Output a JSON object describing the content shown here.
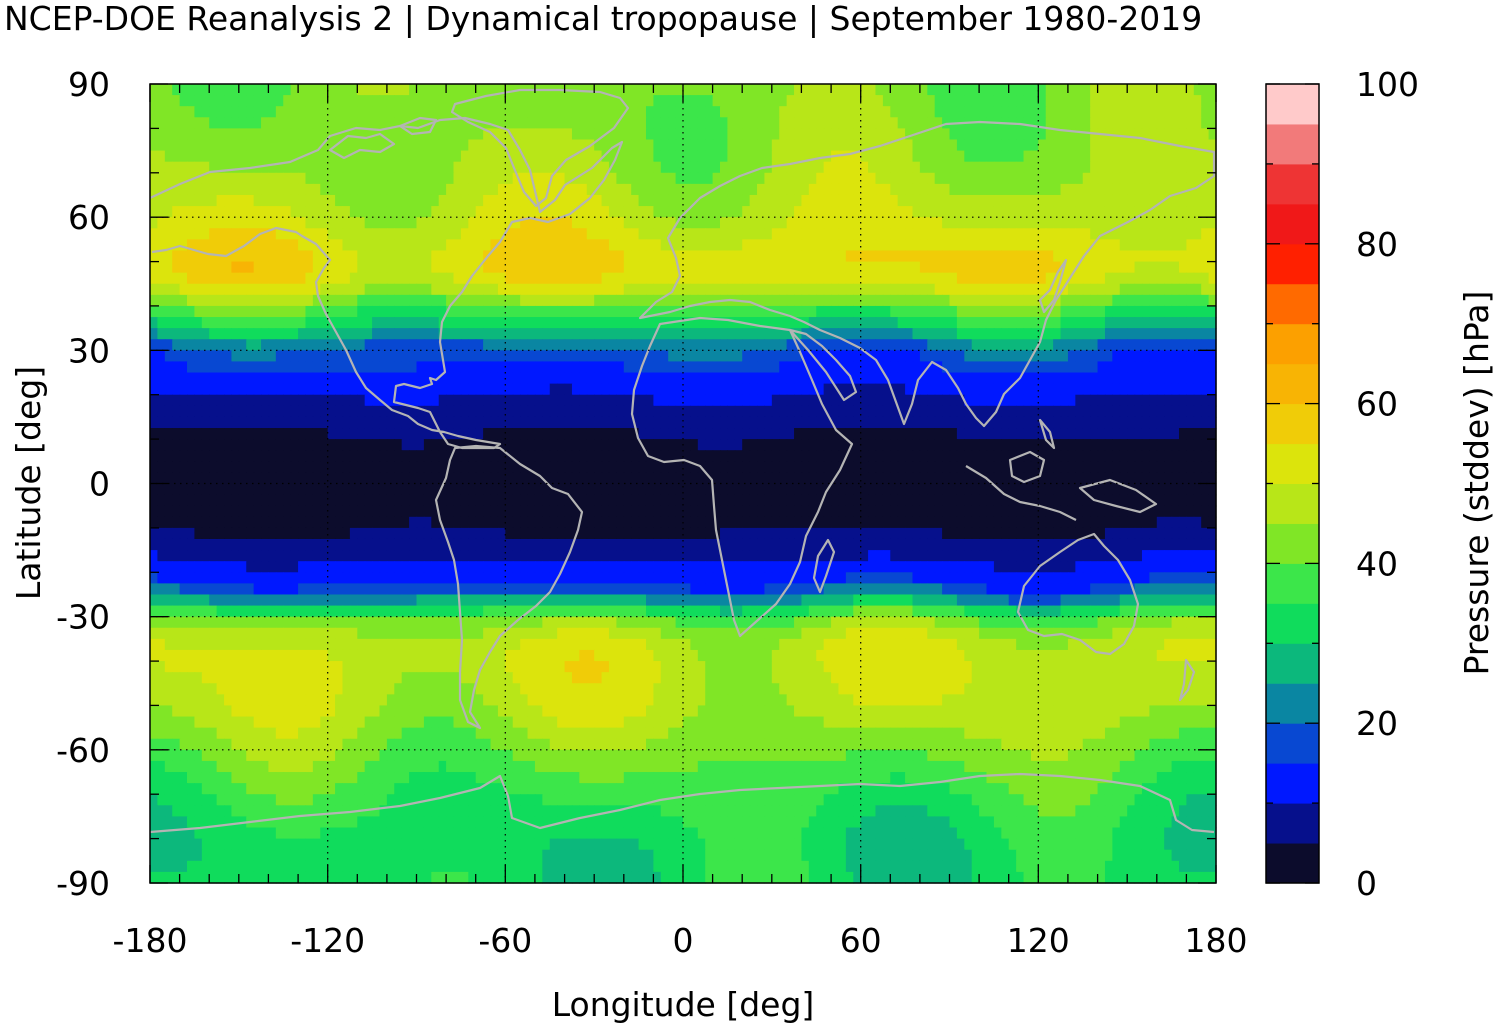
{
  "chart_data": {
    "type": "heatmap",
    "title": "NCEP-DOE Reanalysis 2 | Dynamical tropopause | September 1980-2019",
    "xlabel": "Longitude [deg]",
    "ylabel": "Latitude [deg]",
    "colorbar_label": "Pressure (stddev) [hPa]",
    "xlim": [
      -180,
      180
    ],
    "ylim": [
      -90,
      90
    ],
    "xticks": [
      -180,
      -120,
      -60,
      0,
      60,
      120,
      180
    ],
    "yticks": [
      90,
      60,
      30,
      0,
      -30,
      -60,
      -90
    ],
    "colorbar_range": [
      0,
      100
    ],
    "colorbar_ticks": [
      100,
      80,
      60,
      40,
      20,
      0
    ],
    "grid": true,
    "overlay": "coastlines",
    "coastline_color": "#b4b4b4",
    "colormap": [
      "#0c0c2c",
      "#06108c",
      "#0018ff",
      "#0848d2",
      "#0a86a2",
      "#0cb87c",
      "#10dc5c",
      "#3ce64a",
      "#80e626",
      "#b8e618",
      "#dce40c",
      "#f0cc08",
      "#f8b404",
      "#fca000",
      "#ff6a00",
      "#ff2000",
      "#f01818",
      "#ee3434",
      "#f27a7a",
      "#ffcaca"
    ],
    "latitude_profile": {
      "lat": [
        90,
        80,
        70,
        60,
        50,
        45,
        40,
        35,
        30,
        25,
        20,
        15,
        10,
        5,
        0,
        -5,
        -10,
        -15,
        -20,
        -25,
        -30,
        -35,
        -40,
        -50,
        -60,
        -70,
        -80,
        -90
      ],
      "stddev_hPa": [
        42,
        43,
        45,
        49,
        55,
        52,
        40,
        30,
        18,
        14,
        10,
        8,
        4,
        3,
        3,
        3,
        4,
        8,
        12,
        20,
        40,
        48,
        50,
        48,
        42,
        36,
        32,
        32
      ]
    }
  }
}
